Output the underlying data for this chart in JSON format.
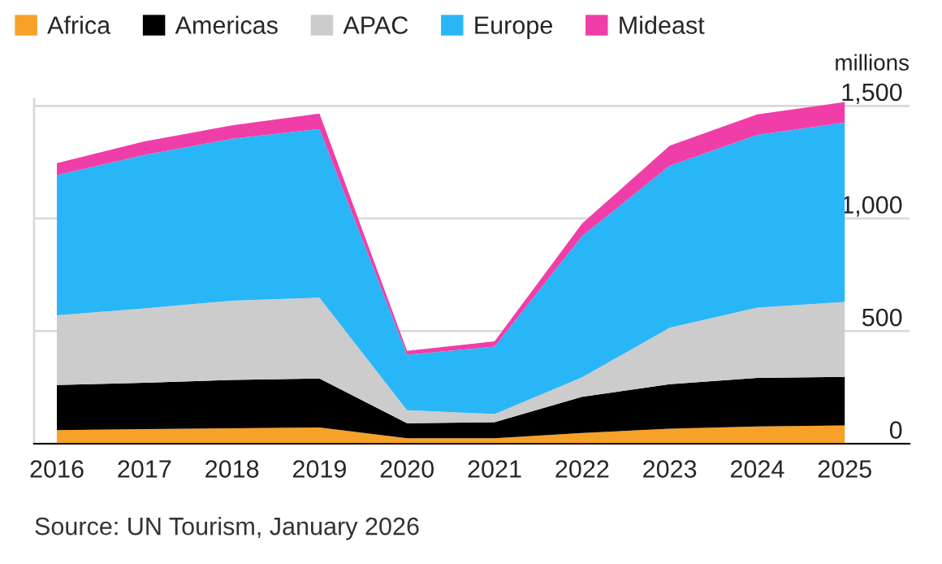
{
  "chart_data": {
    "type": "area",
    "stacked": true,
    "ylabel": "millions",
    "x": [
      2016,
      2017,
      2018,
      2019,
      2020,
      2021,
      2022,
      2023,
      2024,
      2025
    ],
    "series": [
      {
        "name": "Africa",
        "color": "#f7a128",
        "values": [
          60,
          65,
          69,
          72,
          24,
          24,
          48,
          67,
          77,
          81
        ]
      },
      {
        "name": "Americas",
        "color": "#000000",
        "values": [
          201,
          206,
          214,
          218,
          67,
          72,
          160,
          197,
          215,
          216
        ]
      },
      {
        "name": "APAC",
        "color": "#cccccc",
        "values": [
          309,
          330,
          352,
          359,
          58,
          36,
          87,
          251,
          312,
          333
        ]
      },
      {
        "name": "Europe",
        "color": "#29b6f6",
        "values": [
          623,
          681,
          719,
          748,
          246,
          299,
          627,
          719,
          767,
          796
        ]
      },
      {
        "name": "Mideast",
        "color": "#f03ea8",
        "values": [
          53,
          60,
          60,
          69,
          17,
          24,
          56,
          89,
          91,
          91
        ]
      }
    ],
    "xlim": [
      2015.74,
      2025.74
    ],
    "xticks": [
      2016,
      2017,
      2018,
      2019,
      2020,
      2021,
      2022,
      2023,
      2024,
      2025
    ],
    "ylim": [
      0,
      1530
    ],
    "yticks": [
      0,
      {
        "value": 500,
        "label": "500"
      },
      {
        "value": 1000,
        "label": "1,000"
      },
      {
        "value": 1500,
        "label": "1,500"
      }
    ],
    "grid": "y",
    "legend": "top left",
    "annotations": [
      "Source: UN Tourism, January 2026"
    ]
  }
}
